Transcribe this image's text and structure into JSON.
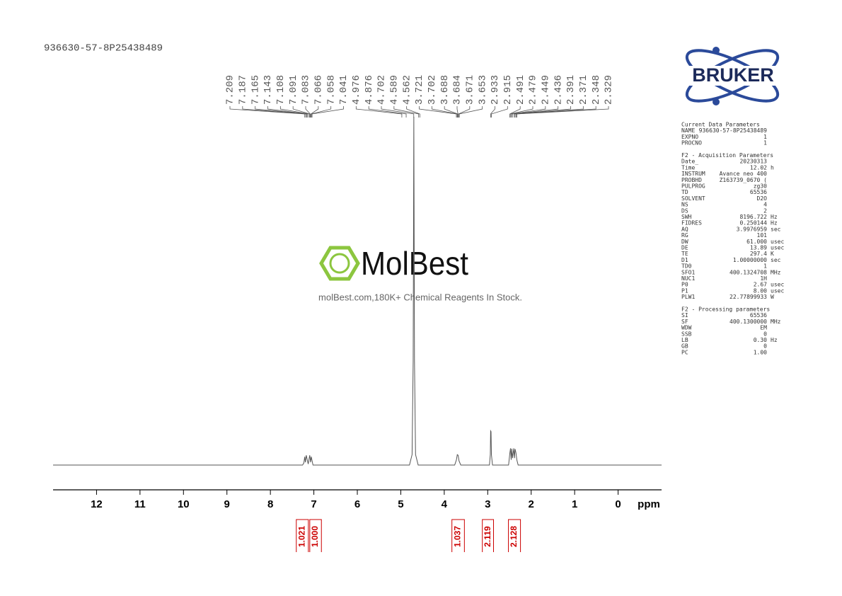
{
  "header": {
    "sample_id": "936630-57-8P25438489"
  },
  "logo": {
    "text": "BRUKER"
  },
  "watermark": {
    "brand": "MolBest",
    "tagline": "molBest.com,180K+ Chemical Reagents In Stock."
  },
  "chart_data": {
    "type": "line",
    "color": "#555555",
    "xlabel": "ppm",
    "xlim": [
      13,
      -1
    ],
    "xticks": [
      12,
      11,
      10,
      9,
      8,
      7,
      6,
      5,
      4,
      3,
      2,
      1,
      0
    ],
    "ylim": [
      0,
      100
    ],
    "x": [
      13,
      7.26,
      7.23,
      7.209,
      7.195,
      7.175,
      7.13,
      7.095,
      7.075,
      7.06,
      7.02,
      4.8,
      4.74,
      4.715,
      4.7,
      4.685,
      4.66,
      4.6,
      3.76,
      3.72,
      3.7,
      3.68,
      3.66,
      3.62,
      2.96,
      2.94,
      2.933,
      2.924,
      2.915,
      2.89,
      2.52,
      2.49,
      2.475,
      2.46,
      2.445,
      2.43,
      2.4,
      2.385,
      2.37,
      2.35,
      2.33,
      2.3,
      -1
    ],
    "values": [
      0,
      0,
      0.6,
      2.4,
      0.8,
      2.8,
      0.3,
      2.8,
      0.8,
      2.4,
      0,
      0,
      3,
      30,
      100,
      30,
      3,
      0,
      0,
      1.5,
      3,
      2.8,
      1.2,
      0,
      0,
      3,
      9.8,
      9.6,
      3,
      0,
      0,
      3.5,
      4.8,
      1.5,
      4.7,
      2,
      4.8,
      2,
      4.6,
      3.5,
      1.5,
      0,
      0
    ],
    "peak_labels": [
      7.209,
      7.187,
      7.165,
      7.143,
      7.108,
      7.091,
      7.083,
      7.066,
      7.058,
      7.041,
      4.976,
      4.876,
      4.702,
      4.589,
      4.562,
      3.721,
      3.702,
      3.688,
      3.684,
      3.671,
      3.653,
      2.933,
      2.915,
      2.491,
      2.479,
      2.449,
      2.436,
      2.391,
      2.371,
      2.348,
      2.329
    ],
    "integrals": {
      "color": "#cc0000",
      "values": [
        1.021,
        1,
        1.037,
        2.119,
        2.128
      ],
      "value_labels": [
        "1.021",
        "1.000",
        "1.037",
        "2.119",
        "2.128"
      ],
      "ranges": [
        [
          7.42,
          7.11
        ],
        [
          7.11,
          6.81
        ],
        [
          3.84,
          3.52
        ],
        [
          3.14,
          2.85
        ],
        [
          2.54,
          2.23
        ]
      ]
    }
  },
  "parameters": {
    "sections": [
      {
        "title": "Current Data Parameters",
        "rows": [
          [
            "NAME",
            "936630-57-8P25438489"
          ],
          [
            "EXPNO",
            "1"
          ],
          [
            "PROCNO",
            "1"
          ]
        ]
      },
      {
        "title": "F2 - Acquisition Parameters",
        "rows": [
          [
            "Date_",
            "20230313"
          ],
          [
            "Time",
            "12.02",
            "h"
          ],
          [
            "INSTRUM",
            "Avance neo 400"
          ],
          [
            "PROBHD",
            "Z163739_0670 ("
          ],
          [
            "PULPROG",
            "zg30"
          ],
          [
            "TD",
            "65536"
          ],
          [
            "SOLVENT",
            "D2O"
          ],
          [
            "NS",
            "4"
          ],
          [
            "DS",
            "2"
          ],
          [
            "SWH",
            "8196.722",
            "Hz"
          ],
          [
            "FIDRES",
            "0.250144",
            "Hz"
          ],
          [
            "AQ",
            "3.9976959",
            "sec"
          ],
          [
            "RG",
            "101"
          ],
          [
            "DW",
            "61.000",
            "usec"
          ],
          [
            "DE",
            "13.89",
            "usec"
          ],
          [
            "TE",
            "297.4",
            "K"
          ],
          [
            "D1",
            "1.00000000",
            "sec"
          ],
          [
            "TD0",
            "1"
          ],
          [
            "SFO1",
            "400.1324708",
            "MHz"
          ],
          [
            "NUC1",
            "1H"
          ],
          [
            "P0",
            "2.67",
            "usec"
          ],
          [
            "P1",
            "8.00",
            "usec"
          ],
          [
            "PLW1",
            "22.77899933",
            "W"
          ]
        ]
      },
      {
        "title": "F2 - Processing parameters",
        "rows": [
          [
            "SI",
            "65536"
          ],
          [
            "SF",
            "400.1300000",
            "MHz"
          ],
          [
            "WDW",
            "EM"
          ],
          [
            "SSB",
            "0"
          ],
          [
            "LB",
            "0.30",
            "Hz"
          ],
          [
            "GB",
            "0"
          ],
          [
            "PC",
            "1.00"
          ]
        ]
      }
    ]
  }
}
